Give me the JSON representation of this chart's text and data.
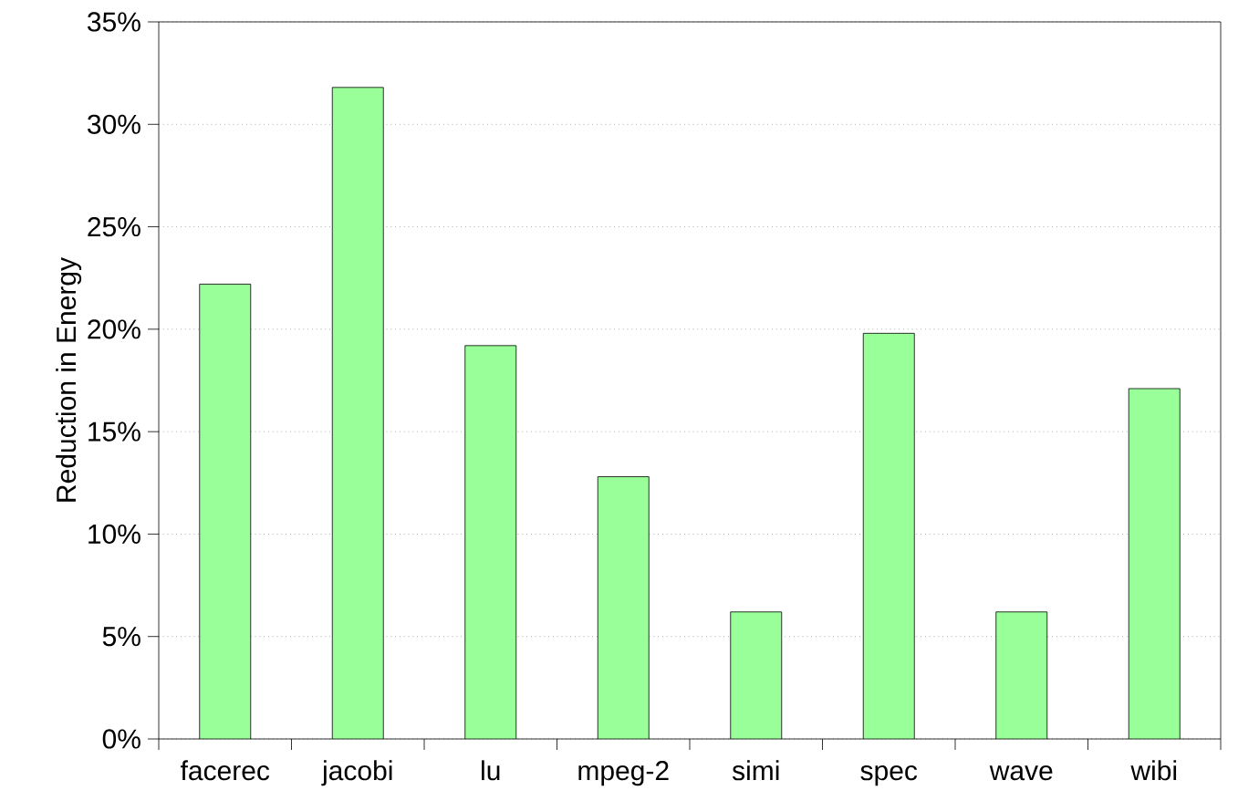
{
  "chart_data": {
    "type": "bar",
    "ylabel": "Reduction in Energy",
    "categories": [
      "facerec",
      "jacobi",
      "lu",
      "mpeg-2",
      "simi",
      "spec",
      "wave",
      "wibi"
    ],
    "values": [
      22.2,
      31.8,
      19.2,
      12.8,
      6.2,
      19.8,
      6.2,
      17.1
    ],
    "color": "#99ff99",
    "ylim": [
      0,
      35
    ],
    "yticks": [
      {
        "value": 0,
        "label": "0%"
      },
      {
        "value": 5,
        "label": "5%"
      },
      {
        "value": 10,
        "label": "10%"
      },
      {
        "value": 15,
        "label": "15%"
      },
      {
        "value": 20,
        "label": "20%"
      },
      {
        "value": 25,
        "label": "25%"
      },
      {
        "value": 30,
        "label": "30%"
      },
      {
        "value": 35,
        "label": "35%"
      }
    ],
    "grid": "y"
  }
}
